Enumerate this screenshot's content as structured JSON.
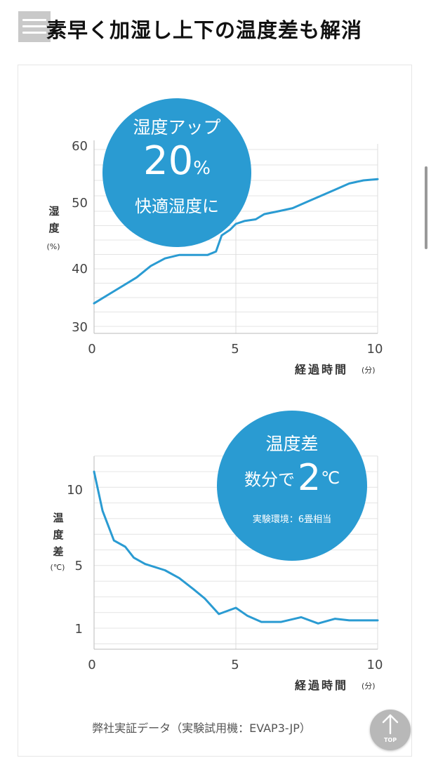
{
  "header": {
    "title": "素早く加湿し上下の温度差も解消",
    "menu_icon": "hamburger-menu-icon"
  },
  "chart1": {
    "y_label_chars": [
      "湿",
      "度"
    ],
    "y_unit": "(%)",
    "x_title": "経過時間",
    "x_unit": "(分)",
    "y_ticks": [
      "60",
      "50",
      "40",
      "30"
    ],
    "x_ticks": [
      "0",
      "5",
      "10"
    ],
    "callout": {
      "line1": "湿度アップ",
      "big": "20",
      "big_unit": "%",
      "line3": "快適湿度に"
    }
  },
  "chart2": {
    "y_label_chars": [
      "温",
      "度",
      "差"
    ],
    "y_unit": "(℃)",
    "x_title": "経過時間",
    "x_unit": "(分)",
    "y_ticks": [
      "10",
      "5",
      "1"
    ],
    "x_ticks": [
      "0",
      "5",
      "10"
    ],
    "callout": {
      "line1": "温度差",
      "prefix": "数分で",
      "big": "2",
      "big_unit": "℃",
      "note": "実験環境：6畳相当"
    }
  },
  "chart_data": [
    {
      "type": "line",
      "xlabel": "経過時間 (分)",
      "ylabel": "湿度 (%)",
      "xlim": [
        0,
        10
      ],
      "ylim": [
        30,
        60
      ],
      "color": "#2a9bd2",
      "grid": true,
      "x": [
        0,
        0.5,
        1,
        1.5,
        2,
        2.5,
        3,
        3.5,
        4,
        4.3,
        4.5,
        4.8,
        5,
        5.3,
        5.7,
        6,
        6.5,
        7,
        7.5,
        8,
        8.5,
        9,
        9.5,
        10
      ],
      "y": [
        34,
        35.5,
        37,
        38.5,
        40.5,
        41.8,
        42.4,
        42.4,
        42.4,
        43,
        45.8,
        46.8,
        47.8,
        48.3,
        48.6,
        49.5,
        50,
        50.5,
        51.5,
        52.5,
        53.5,
        54.5,
        55,
        55.2
      ]
    },
    {
      "type": "line",
      "xlabel": "経過時間 (分)",
      "ylabel": "温度差 (℃)",
      "xlim": [
        0,
        10
      ],
      "ylim": [
        0,
        12
      ],
      "color": "#2a9bd2",
      "grid": true,
      "x": [
        0,
        0.3,
        0.7,
        1.1,
        1.4,
        1.8,
        2.5,
        3,
        3.5,
        3.9,
        4.4,
        5,
        5.4,
        5.9,
        6.6,
        7.3,
        7.9,
        8.5,
        9,
        9.5,
        10
      ],
      "y": [
        11,
        8.5,
        6.6,
        6.2,
        5.5,
        5.1,
        4.7,
        4.2,
        3.5,
        2.9,
        1.9,
        2.3,
        1.8,
        1.4,
        1.4,
        1.7,
        1.3,
        1.6,
        1.5,
        1.5,
        1.5
      ]
    }
  ],
  "footer": {
    "caption": "弊社実証データ（実験試用機：EVAP3-JP）",
    "top_label": "TOP"
  }
}
